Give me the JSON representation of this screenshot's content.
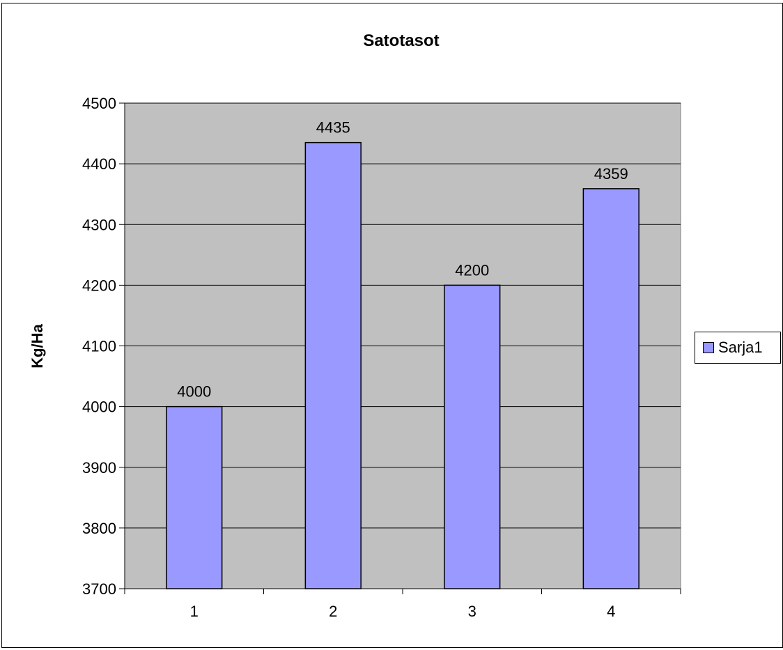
{
  "chart_data": {
    "type": "bar",
    "title": "Satotasot",
    "xlabel": "",
    "ylabel": "Kg/Ha",
    "categories": [
      "1",
      "2",
      "3",
      "4"
    ],
    "series": [
      {
        "name": "Sarja1",
        "values": [
          4000,
          4435,
          4200,
          4359
        ]
      }
    ],
    "ylim": [
      3700,
      4500
    ],
    "yticks": [
      3700,
      3800,
      3900,
      4000,
      4100,
      4200,
      4300,
      4400,
      4500
    ],
    "data_labels": true,
    "grid": true,
    "legend": "right",
    "colors": {
      "bar": "#9999ff",
      "plot_background": "#c0c0c0",
      "gridline": "#000000"
    }
  }
}
